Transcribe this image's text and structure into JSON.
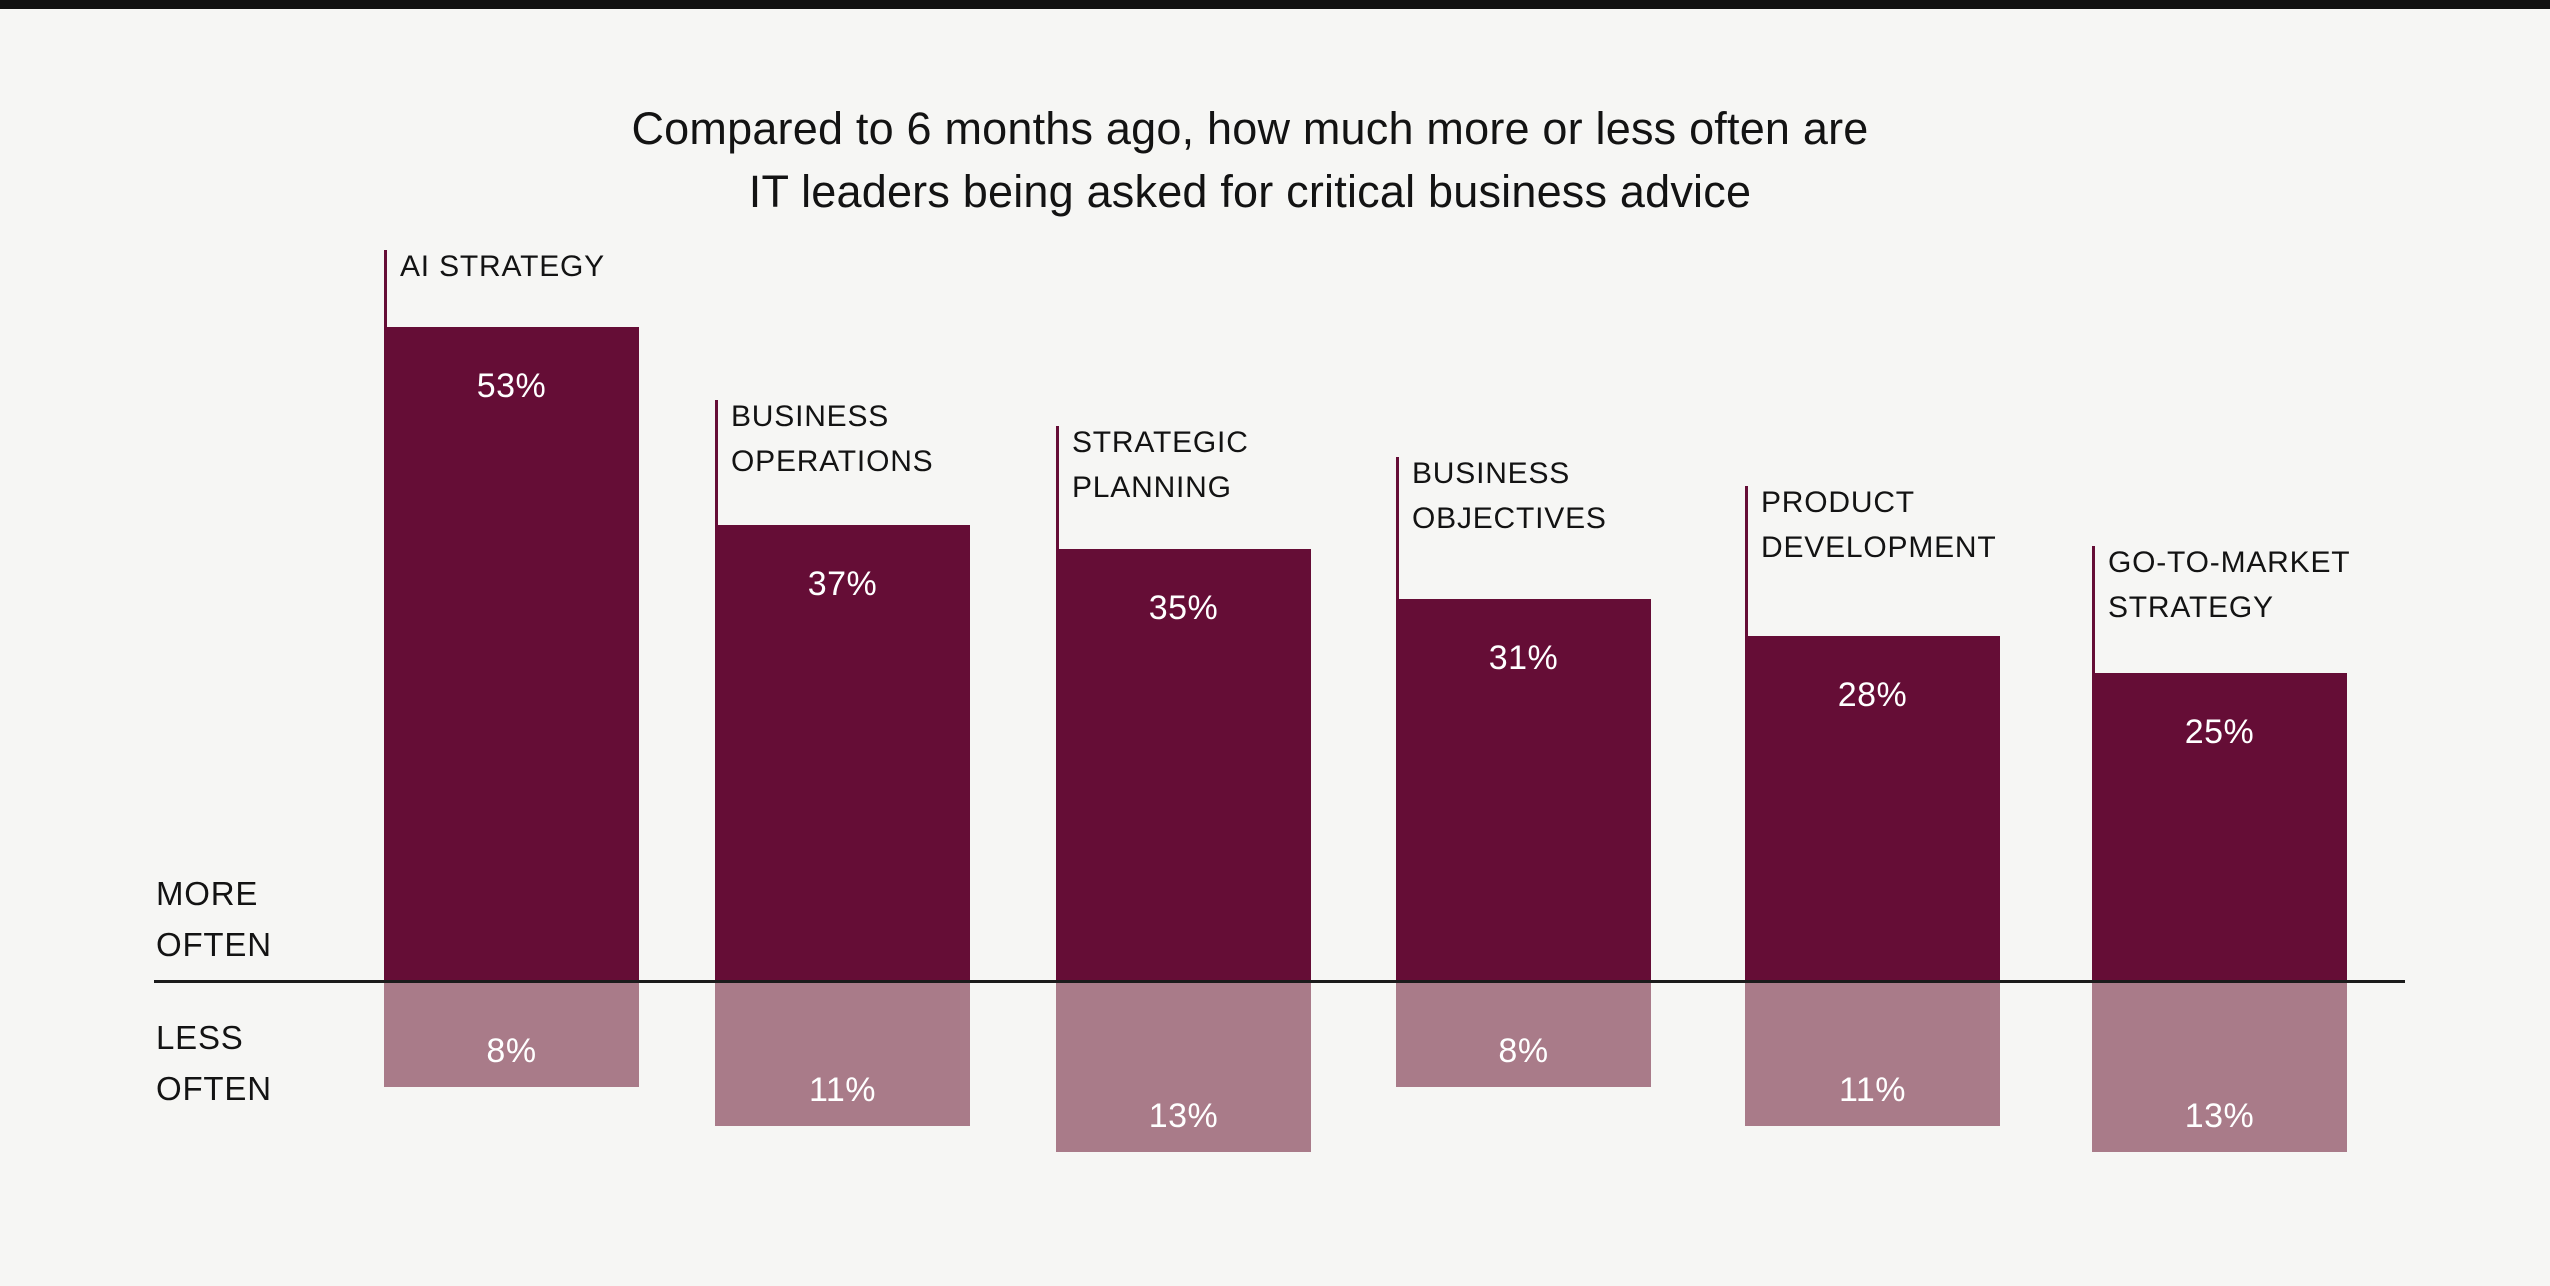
{
  "page": {
    "top_bar_color": "#111111",
    "background": "#f6f6f4",
    "title_line1": "Compared to 6 months ago, how much more or less often are",
    "title_line2": "IT leaders being asked for critical business advice"
  },
  "axis_labels": {
    "positive": "MORE\nOFTEN",
    "negative": "LESS\nOFTEN"
  },
  "colors": {
    "more_bar": "#650d36",
    "less_bar": "#a97b89",
    "axis_line": "#1b1b1b",
    "heading_text": "#131313",
    "value_text": "#ffffff"
  },
  "chart_data": {
    "type": "bar",
    "subtype": "diverging-vertical",
    "title": "Compared to 6 months ago, how much more or less often are IT leaders being asked for critical business advice",
    "categories": [
      "AI STRATEGY",
      "BUSINESS\nOPERATIONS",
      "STRATEGIC\nPLANNING",
      "BUSINESS\nOBJECTIVES",
      "PRODUCT\nDEVELOPMENT",
      "GO-TO-MARKET\nSTRATEGY"
    ],
    "value_suffix": "%",
    "series": [
      {
        "name": "MORE OFTEN",
        "direction": "up",
        "values": [
          53,
          37,
          35,
          31,
          28,
          25
        ]
      },
      {
        "name": "LESS OFTEN",
        "direction": "down",
        "values": [
          8,
          11,
          13,
          8,
          11,
          13
        ]
      }
    ],
    "baseline": 0,
    "grid": false,
    "legend": "axis-side-labels"
  }
}
